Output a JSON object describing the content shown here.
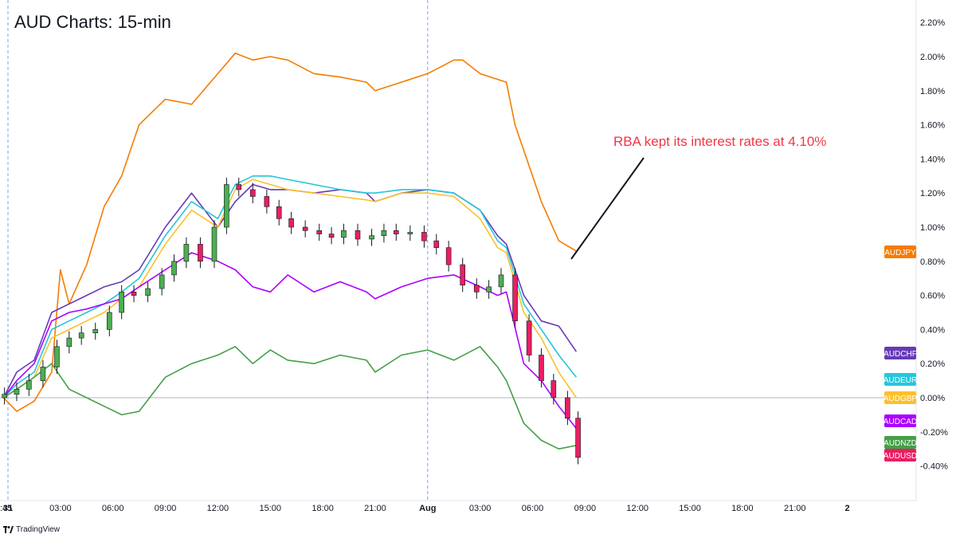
{
  "chart_data": {
    "type": "line",
    "title": "AUD Charts: 15-min",
    "y_unit": "%",
    "ylim": [
      -0.5,
      2.3
    ],
    "y_ticks": [
      "2.20%",
      "2.00%",
      "1.80%",
      "1.60%",
      "1.40%",
      "1.20%",
      "1.00%",
      "0.80%",
      "0.60%",
      "0.40%",
      "0.20%",
      "0.00%",
      "-0.20%",
      "-0.40%"
    ],
    "y_tick_values": [
      2.2,
      2.0,
      1.8,
      1.6,
      1.4,
      1.2,
      1.0,
      0.8,
      0.6,
      0.4,
      0.2,
      0.0,
      -0.2,
      -0.4
    ],
    "x_ticks": [
      ":45",
      "31",
      "03:00",
      "06:00",
      "09:00",
      "12:00",
      "15:00",
      "18:00",
      "21:00",
      "Aug",
      "03:00",
      "06:00",
      "09:00",
      "12:00",
      "15:00",
      "18:00",
      "21:00",
      "2"
    ],
    "x_tick_hours": [
      -0.25,
      0,
      3,
      6,
      9,
      12,
      15,
      18,
      21,
      24,
      27,
      30,
      33,
      36,
      39,
      42,
      45,
      48
    ],
    "x_unit": "hours",
    "xlim": [
      -0.2,
      48.2
    ],
    "session_markers_hours": [
      0,
      24
    ],
    "zero_line": 0.0,
    "grid": false,
    "series": [
      {
        "name": "AUDJPY",
        "color": "#f57c00",
        "x": [
          -0.25,
          0.5,
          1.5,
          2.5,
          3.0,
          3.5,
          4.5,
          5.5,
          6.5,
          7.5,
          9.0,
          10.5,
          12.0,
          13.0,
          14.0,
          15.0,
          16.0,
          17.5,
          19.0,
          20.5,
          21.0,
          22.5,
          24.0,
          25.5,
          26.0,
          27.0,
          28.5,
          29.0,
          29.5,
          30.5,
          31.5,
          32.5
        ],
        "values": [
          0.0,
          -0.08,
          -0.02,
          0.15,
          0.75,
          0.55,
          0.78,
          1.12,
          1.3,
          1.6,
          1.75,
          1.72,
          1.9,
          2.02,
          1.98,
          2.0,
          1.98,
          1.9,
          1.88,
          1.85,
          1.8,
          1.85,
          1.9,
          1.98,
          1.98,
          1.9,
          1.85,
          1.6,
          1.45,
          1.15,
          0.92,
          0.86
        ]
      },
      {
        "name": "AUDCHF",
        "color": "#673ab7",
        "x": [
          -0.25,
          0.5,
          1.5,
          2.5,
          3.5,
          4.5,
          5.5,
          6.5,
          7.5,
          9.0,
          10.5,
          12.0,
          13.0,
          14.0,
          15.0,
          16.0,
          17.5,
          19.0,
          20.5,
          21.0,
          22.5,
          24.0,
          25.5,
          27.0,
          28.0,
          28.5,
          29.5,
          30.5,
          31.5,
          32.5
        ],
        "values": [
          0.0,
          0.15,
          0.22,
          0.5,
          0.55,
          0.6,
          0.65,
          0.68,
          0.75,
          1.0,
          1.2,
          1.0,
          1.15,
          1.25,
          1.22,
          1.22,
          1.2,
          1.22,
          1.2,
          1.15,
          1.2,
          1.22,
          1.2,
          1.1,
          0.95,
          0.9,
          0.6,
          0.45,
          0.42,
          0.27
        ]
      },
      {
        "name": "AUDEUR",
        "color": "#26c6da",
        "x": [
          -0.25,
          0.5,
          1.5,
          2.5,
          3.5,
          4.5,
          5.5,
          6.5,
          7.5,
          9.0,
          10.5,
          12.0,
          13.0,
          14.0,
          15.0,
          16.0,
          17.5,
          19.0,
          20.5,
          21.0,
          22.5,
          24.0,
          25.5,
          27.0,
          28.0,
          28.5,
          29.5,
          30.5,
          31.5,
          32.5
        ],
        "values": [
          0.0,
          0.08,
          0.15,
          0.4,
          0.45,
          0.5,
          0.55,
          0.62,
          0.7,
          0.95,
          1.15,
          1.05,
          1.25,
          1.3,
          1.3,
          1.28,
          1.25,
          1.22,
          1.2,
          1.2,
          1.22,
          1.22,
          1.2,
          1.1,
          0.92,
          0.88,
          0.55,
          0.4,
          0.25,
          0.12
        ]
      },
      {
        "name": "AUDGBP",
        "color": "#fbc02d",
        "x": [
          -0.25,
          0.5,
          1.5,
          2.5,
          3.5,
          4.5,
          5.5,
          6.5,
          7.5,
          9.0,
          10.5,
          12.0,
          13.0,
          14.0,
          15.0,
          16.0,
          17.5,
          19.0,
          20.5,
          21.0,
          22.5,
          24.0,
          25.5,
          27.0,
          28.0,
          28.5,
          29.5,
          30.5,
          31.5,
          32.5
        ],
        "values": [
          0.0,
          0.05,
          0.12,
          0.35,
          0.4,
          0.45,
          0.5,
          0.58,
          0.65,
          0.9,
          1.1,
          1.0,
          1.22,
          1.28,
          1.25,
          1.22,
          1.2,
          1.18,
          1.16,
          1.15,
          1.2,
          1.2,
          1.18,
          1.05,
          0.88,
          0.85,
          0.5,
          0.35,
          0.15,
          0.0
        ]
      },
      {
        "name": "AUDCAD",
        "color": "#aa00ff",
        "x": [
          -0.25,
          0.5,
          1.5,
          2.5,
          3.5,
          4.5,
          5.5,
          6.5,
          7.5,
          9.0,
          10.5,
          12.0,
          13.0,
          14.0,
          15.0,
          16.0,
          17.5,
          19.0,
          20.5,
          21.0,
          22.5,
          24.0,
          25.5,
          27.0,
          28.0,
          28.5,
          29.5,
          30.5,
          31.5,
          32.5
        ],
        "values": [
          0.0,
          0.1,
          0.2,
          0.45,
          0.5,
          0.52,
          0.55,
          0.58,
          0.65,
          0.75,
          0.85,
          0.8,
          0.75,
          0.65,
          0.62,
          0.72,
          0.62,
          0.68,
          0.62,
          0.58,
          0.65,
          0.7,
          0.72,
          0.65,
          0.6,
          0.62,
          0.2,
          0.1,
          -0.05,
          -0.18
        ]
      },
      {
        "name": "AUDNZD",
        "color": "#43a047",
        "x": [
          -0.25,
          0.5,
          1.5,
          2.5,
          3.5,
          4.5,
          5.5,
          6.5,
          7.5,
          9.0,
          10.5,
          12.0,
          13.0,
          14.0,
          15.0,
          16.0,
          17.5,
          19.0,
          20.5,
          21.0,
          22.5,
          24.0,
          25.5,
          27.0,
          28.0,
          28.5,
          29.5,
          30.5,
          31.5,
          32.5
        ],
        "values": [
          0.0,
          0.05,
          0.12,
          0.2,
          0.05,
          0.0,
          -0.05,
          -0.1,
          -0.08,
          0.12,
          0.2,
          0.25,
          0.3,
          0.2,
          0.28,
          0.22,
          0.2,
          0.25,
          0.22,
          0.15,
          0.25,
          0.28,
          0.22,
          0.3,
          0.18,
          0.1,
          -0.15,
          -0.25,
          -0.3,
          -0.28
        ]
      }
    ],
    "candles": {
      "name": "AUDUSD",
      "up_color": "#4caf50",
      "down_color": "#e91e63",
      "x": [
        -0.2,
        0.5,
        1.2,
        2.0,
        2.8,
        3.5,
        4.2,
        5.0,
        5.8,
        6.5,
        7.2,
        8.0,
        8.8,
        9.5,
        10.2,
        11.0,
        11.8,
        12.5,
        13.2,
        14.0,
        14.8,
        15.5,
        16.2,
        17.0,
        17.8,
        18.5,
        19.2,
        20.0,
        20.8,
        21.5,
        22.2,
        23.0,
        23.8,
        24.5,
        25.2,
        26.0,
        26.8,
        27.5,
        28.2,
        29.0,
        29.8,
        30.5,
        31.2,
        32.0,
        32.6
      ],
      "values": [
        0.02,
        0.05,
        0.1,
        0.18,
        0.3,
        0.35,
        0.38,
        0.4,
        0.5,
        0.62,
        0.6,
        0.64,
        0.72,
        0.8,
        0.9,
        0.8,
        1.0,
        1.25,
        1.22,
        1.18,
        1.12,
        1.05,
        1.0,
        0.98,
        0.96,
        0.94,
        0.98,
        0.93,
        0.95,
        0.98,
        0.96,
        0.97,
        0.92,
        0.88,
        0.78,
        0.66,
        0.62,
        0.65,
        0.72,
        0.45,
        0.25,
        0.1,
        0.0,
        -0.12,
        -0.35
      ]
    },
    "labels": [
      "AUDJPY",
      "AUDCHF",
      "AUDEUR",
      "AUDGBP",
      "AUDCAD",
      "AUDNZD",
      "AUDUSD"
    ],
    "annotation": {
      "text": "RBA kept its interest rates at 4.10%",
      "color": "#f23645"
    }
  },
  "footer": {
    "brand": "TradingView"
  }
}
